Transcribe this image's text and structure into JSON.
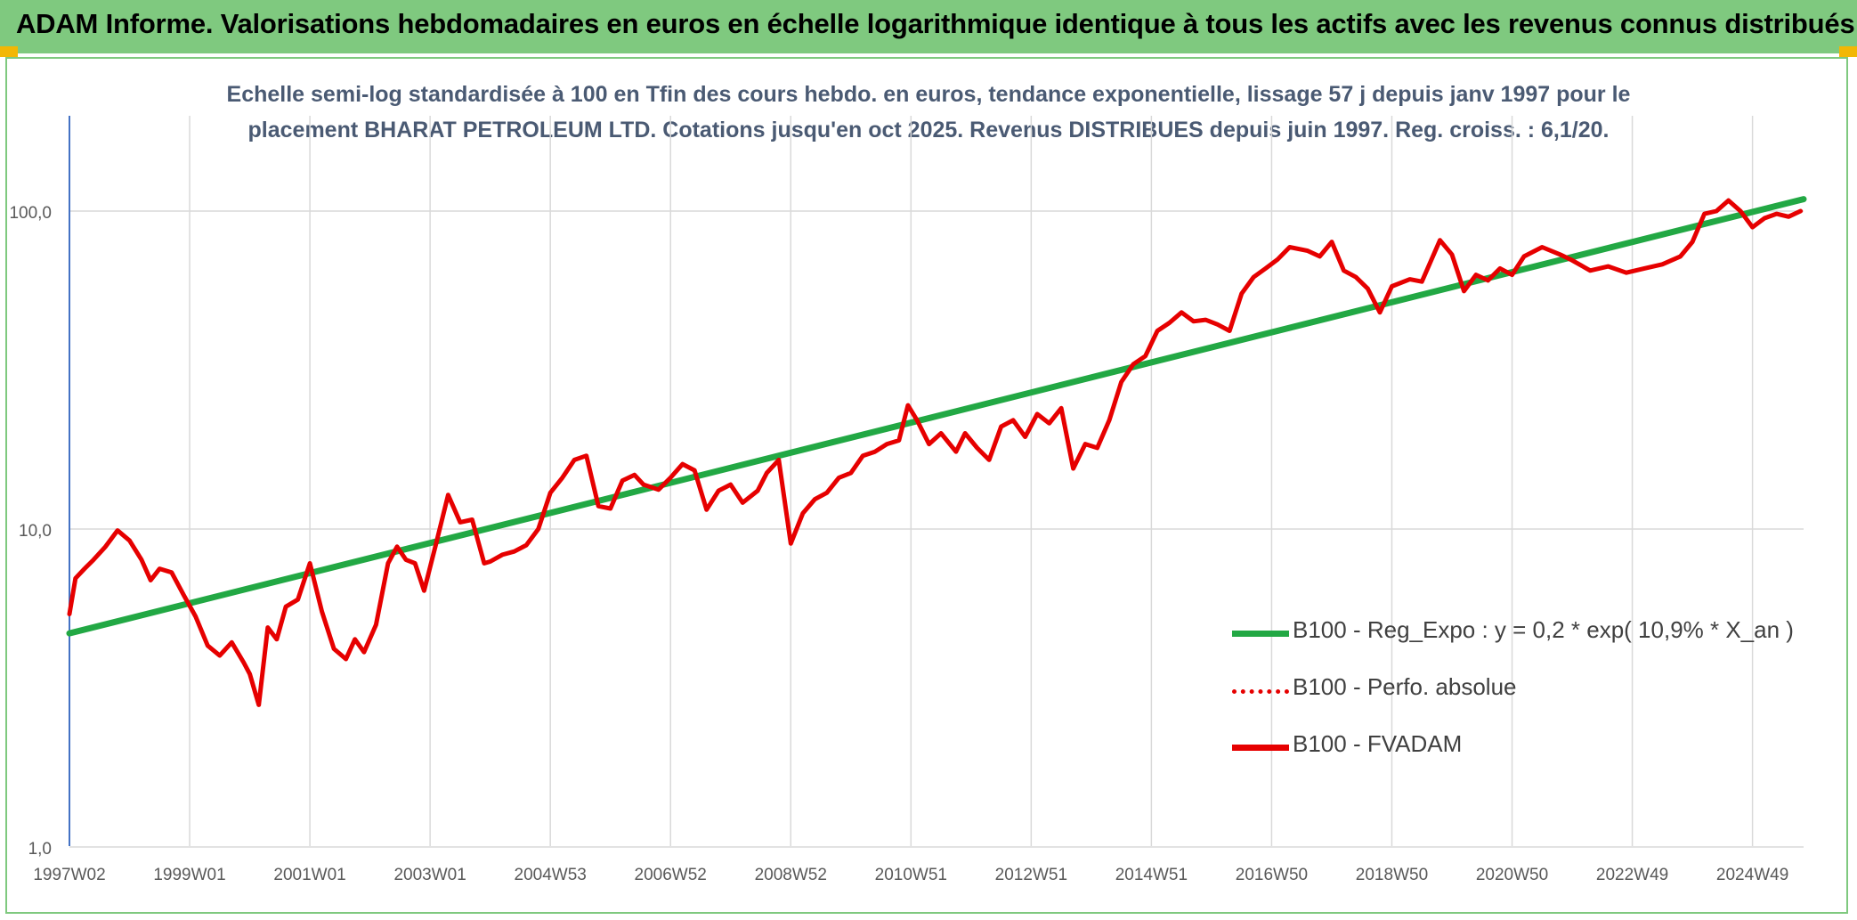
{
  "header": {
    "title": "ADAM Informe. Valorisations hebdomadaires en euros en échelle logarithmique identique à tous les actifs avec les revenus connus distribués",
    "accent_color": "#7fc97f",
    "corner_color": "#f2b705"
  },
  "chart_data": {
    "type": "line",
    "title_line1": "Echelle semi-log standardisée à 100 en Tfin des cours hebdo. en euros, tendance exponentielle, lissage 57 j depuis janv 1997 pour le",
    "title_line2": "placement BHARAT PETROLEUM LTD. Cotations jusqu'en oct 2025. Revenus DISTRIBUES depuis juin 1997. Reg. croiss. : 6,1/20.",
    "y_scale": "log",
    "ylim": [
      1,
      180
    ],
    "xlim": [
      1997.0,
      2025.85
    ],
    "grid": true,
    "legend_placement": "bottom-right",
    "y_ticks": [
      {
        "value": 1,
        "label": "1,0"
      },
      {
        "value": 10,
        "label": "10,0"
      },
      {
        "value": 100,
        "label": "100,0"
      }
    ],
    "x_ticks": [
      {
        "value": 1997.0,
        "label": "1997W02"
      },
      {
        "value": 1999.0,
        "label": "1999W01"
      },
      {
        "value": 2001.0,
        "label": "2001W01"
      },
      {
        "value": 2003.0,
        "label": "2003W01"
      },
      {
        "value": 2005.0,
        "label": "2004W53"
      },
      {
        "value": 2007.0,
        "label": "2006W52"
      },
      {
        "value": 2009.0,
        "label": "2008W52"
      },
      {
        "value": 2011.0,
        "label": "2010W51"
      },
      {
        "value": 2013.0,
        "label": "2012W51"
      },
      {
        "value": 2015.0,
        "label": "2014W51"
      },
      {
        "value": 2017.0,
        "label": "2016W50"
      },
      {
        "value": 2019.0,
        "label": "2018W50"
      },
      {
        "value": 2021.0,
        "label": "2020W50"
      },
      {
        "value": 2023.0,
        "label": "2022W49"
      },
      {
        "value": 2025.0,
        "label": "2024W49"
      }
    ],
    "series": [
      {
        "name": "B100 - Reg_Expo : y = 0,2 * exp( 10,9% * X_an )",
        "color": "#22a844",
        "style": "solid",
        "x": [
          1997.0,
          2025.85
        ],
        "y": [
          4.7,
          109
        ]
      },
      {
        "name": "B100 - Perfo. absolue",
        "color": "#e60000",
        "style": "dotted",
        "x": [],
        "y": []
      },
      {
        "name": "B100 - FVADAM",
        "color": "#e60000",
        "style": "solid",
        "x": [
          1997.0,
          1997.1,
          1997.25,
          1997.4,
          1997.6,
          1997.8,
          1998.0,
          1998.2,
          1998.35,
          1998.5,
          1998.7,
          1998.9,
          1999.1,
          1999.3,
          1999.5,
          1999.7,
          1999.9,
          2000.0,
          2000.15,
          2000.3,
          2000.45,
          2000.6,
          2000.8,
          2001.0,
          2001.2,
          2001.4,
          2001.6,
          2001.75,
          2001.9,
          2002.1,
          2002.3,
          2002.45,
          2002.6,
          2002.75,
          2002.9,
          2003.1,
          2003.3,
          2003.5,
          2003.7,
          2003.9,
          2004.0,
          2004.2,
          2004.4,
          2004.6,
          2004.8,
          2005.0,
          2005.2,
          2005.4,
          2005.6,
          2005.8,
          2006.0,
          2006.2,
          2006.4,
          2006.55,
          2006.8,
          2007.0,
          2007.2,
          2007.4,
          2007.6,
          2007.8,
          2008.0,
          2008.2,
          2008.45,
          2008.6,
          2008.8,
          2009.0,
          2009.2,
          2009.4,
          2009.6,
          2009.8,
          2010.0,
          2010.2,
          2010.4,
          2010.6,
          2010.8,
          2010.95,
          2011.1,
          2011.3,
          2011.5,
          2011.75,
          2011.9,
          2012.1,
          2012.3,
          2012.5,
          2012.7,
          2012.9,
          2013.1,
          2013.3,
          2013.5,
          2013.7,
          2013.9,
          2014.1,
          2014.3,
          2014.5,
          2014.7,
          2014.9,
          2015.1,
          2015.3,
          2015.5,
          2015.7,
          2015.9,
          2016.1,
          2016.3,
          2016.5,
          2016.7,
          2016.9,
          2017.1,
          2017.3,
          2017.6,
          2017.8,
          2018.0,
          2018.2,
          2018.4,
          2018.6,
          2018.8,
          2019.0,
          2019.3,
          2019.5,
          2019.8,
          2020.0,
          2020.2,
          2020.4,
          2020.6,
          2020.8,
          2021.0,
          2021.2,
          2021.5,
          2021.8,
          2022.0,
          2022.3,
          2022.6,
          2022.9,
          2023.2,
          2023.5,
          2023.8,
          2024.0,
          2024.2,
          2024.4,
          2024.6,
          2024.8,
          2025.0,
          2025.2,
          2025.4,
          2025.6,
          2025.8
        ],
        "y": [
          5.4,
          7.0,
          7.5,
          8.0,
          8.8,
          9.9,
          9.2,
          8.0,
          6.9,
          7.5,
          7.3,
          6.2,
          5.3,
          4.3,
          4.0,
          4.4,
          3.8,
          3.5,
          2.8,
          4.9,
          4.5,
          5.7,
          6.0,
          7.8,
          5.5,
          4.2,
          3.9,
          4.5,
          4.1,
          5.0,
          7.8,
          8.8,
          8.0,
          7.8,
          6.4,
          9.0,
          12.8,
          10.5,
          10.7,
          7.8,
          7.9,
          8.3,
          8.5,
          8.9,
          10.0,
          13.0,
          14.5,
          16.5,
          17.0,
          11.8,
          11.6,
          14.2,
          14.8,
          13.8,
          13.3,
          14.5,
          16.0,
          15.3,
          11.5,
          13.2,
          13.8,
          12.1,
          13.2,
          15.0,
          16.5,
          9.0,
          11.2,
          12.4,
          13.0,
          14.5,
          15.0,
          17.0,
          17.5,
          18.5,
          19.0,
          24.5,
          22.0,
          18.5,
          20.0,
          17.5,
          20.0,
          18.0,
          16.5,
          21.0,
          22.0,
          19.5,
          23.0,
          21.5,
          24.0,
          15.5,
          18.5,
          18.0,
          22.0,
          29.0,
          33.0,
          35.0,
          42.0,
          44.5,
          48.0,
          45.0,
          45.5,
          44.0,
          42.0,
          55.0,
          62.0,
          66.0,
          70.5,
          77.0,
          75.0,
          72.0,
          80.0,
          65.0,
          62.0,
          57.0,
          48.0,
          58.0,
          61.0,
          60.0,
          81.0,
          73.0,
          56.0,
          63.0,
          60.5,
          66.0,
          63.0,
          72.0,
          77.0,
          73.0,
          70.0,
          65.0,
          67.0,
          64.0,
          66.0,
          68.0,
          72.0,
          80.0,
          98.0,
          100.0,
          108.0,
          100.0,
          89.0,
          95.0,
          98.0,
          96.0,
          100.0
        ]
      }
    ]
  }
}
